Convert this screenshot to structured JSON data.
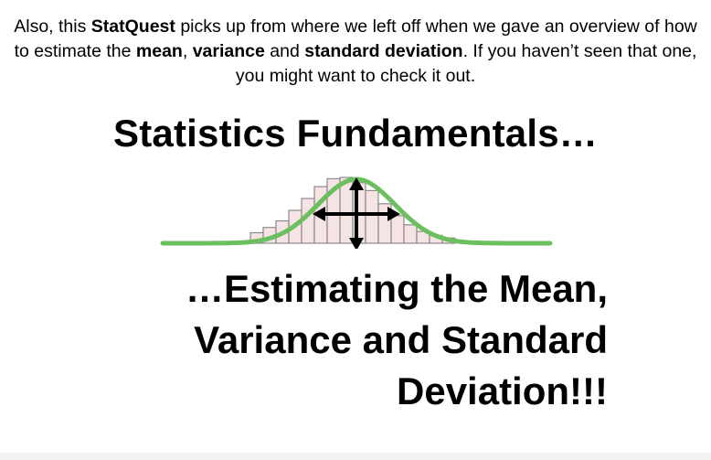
{
  "slide": {
    "intro": {
      "t1": "Also, this ",
      "brand": "StatQuest",
      "t2": " picks up from where we left off when we gave an overview of how to estimate the ",
      "b1": "mean",
      "t3": ", ",
      "b2": "variance",
      "t4": " and ",
      "b3": "standard deviation",
      "t5": ". If you haven’t seen that one, you might want to check it out."
    },
    "title_top": "Statistics Fundamentals…",
    "title_bottom_lines": [
      "…Estimating the Mean,",
      "Variance and Standard",
      "Deviation!!!"
    ]
  },
  "figure": {
    "icon": "normal-distribution-histogram-icon",
    "arrows": "four-way-arrows-icon",
    "curve_color": "#6cbf5f",
    "bar_fill": "#f6e3e3",
    "bar_stroke": "#8b8b8b",
    "arrow_color": "#000000",
    "bar_heights": [
      0.16,
      0.24,
      0.34,
      0.5,
      0.68,
      0.86,
      0.98,
      1.0,
      0.92,
      0.8,
      0.6,
      0.42,
      0.28,
      0.18,
      0.12,
      0.08
    ]
  }
}
